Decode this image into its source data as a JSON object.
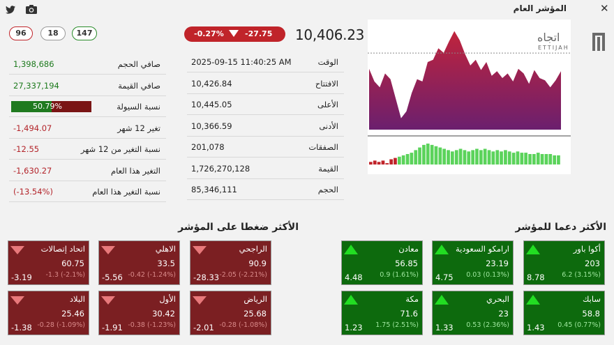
{
  "header": {
    "title": "المؤشر العام",
    "close_icon": "close-icon",
    "twitter_icon": "twitter-icon",
    "camera_icon": "camera-icon"
  },
  "breadth": {
    "down": "96",
    "unchanged": "18",
    "up": "147"
  },
  "index": {
    "value": "10,406.23",
    "change": "-27.75",
    "change_pct": "-0.27%",
    "direction": "down"
  },
  "left_stats": [
    {
      "label": "صافي الحجم",
      "value": "1,398,686",
      "color": "g"
    },
    {
      "label": "صافي القيمة",
      "value": "27,337,194",
      "color": "g"
    },
    {
      "label": "نسبة السيولة",
      "value": "50.79%",
      "fill": 0.5079,
      "type": "bar"
    },
    {
      "label": "تغير 12 شهر",
      "value": "-1,494.07",
      "color": "r"
    },
    {
      "label": "نسبة التغير من 12 شهر",
      "value": "-12.55",
      "color": "r"
    },
    {
      "label": "التغير هذا العام",
      "value": "-1,630.27",
      "color": "r"
    },
    {
      "label": "نسبة التغير هذا العام",
      "value": "(-13.54%)",
      "color": "r"
    }
  ],
  "mid_stats": [
    {
      "label": "الوقت",
      "value": "2025-09-15 11:40:25 AM"
    },
    {
      "label": "الافتتاح",
      "value": "10,426.84"
    },
    {
      "label": "الأعلى",
      "value": "10,445.05"
    },
    {
      "label": "الأدنى",
      "value": "10,366.59"
    },
    {
      "label": "الصفقات",
      "value": "201,078"
    },
    {
      "label": "القيمة",
      "value": "1,726,270,128"
    },
    {
      "label": "الحجم",
      "value": "85,346,111"
    }
  ],
  "logo": {
    "text_ar": "اتجاه",
    "text_en": "ETTIJAH"
  },
  "chart_data": {
    "type": "area",
    "series": [
      {
        "values": [
          10413,
          10402,
          10397,
          10409,
          10404,
          10387,
          10370,
          10376,
          10392,
          10404,
          10402,
          10419,
          10421,
          10431,
          10427,
          10437,
          10446,
          10438,
          10426,
          10416,
          10421,
          10412,
          10419,
          10407,
          10411,
          10405,
          10409,
          10402,
          10413,
          10409,
          10400,
          10412,
          10405,
          10403,
          10397,
          10403,
          10411
        ]
      }
    ],
    "reference_value": 10426.84,
    "volume": [
      2,
      3,
      2,
      3,
      1,
      4,
      5,
      6,
      7,
      8,
      9,
      11,
      13,
      15,
      16,
      15,
      14,
      13,
      12,
      11,
      10,
      11,
      12,
      11,
      10,
      11,
      12,
      11,
      12,
      11,
      10,
      11,
      10,
      11,
      10,
      9,
      10,
      9,
      9,
      8,
      8,
      9,
      8,
      8,
      8,
      7,
      7
    ],
    "volume_down_count": 7,
    "colors": {
      "top": "#b5203a",
      "bottom": "#6e1f70",
      "up_volume": "#5bd35b",
      "down_volume": "#c0242a"
    }
  },
  "sections": {
    "pressure_title": "الأكثر ضغطا على المؤشر",
    "support_title": "الأكثر دعما للمؤشر"
  },
  "pressure_tiles": [
    {
      "name": "الراجحي",
      "price": "90.9",
      "detail": "-2.05 (-2.21%)",
      "impact": "-28.33"
    },
    {
      "name": "الاهلي",
      "price": "33.5",
      "detail": "-0.42 (-1.24%)",
      "impact": "-5.56"
    },
    {
      "name": "اتحاد إتصالات",
      "price": "60.75",
      "detail": "-1.3 (-2.1%)",
      "impact": "-3.19"
    },
    {
      "name": "الرياض",
      "price": "25.68",
      "detail": "-0.28 (-1.08%)",
      "impact": "-2.01"
    },
    {
      "name": "الأول",
      "price": "30.42",
      "detail": "-0.38 (-1.23%)",
      "impact": "-1.91"
    },
    {
      "name": "البلاد",
      "price": "25.46",
      "detail": "-0.28 (-1.09%)",
      "impact": "-1.38"
    }
  ],
  "support_tiles": [
    {
      "name": "أكوا باور",
      "price": "203",
      "detail": "6.2 (3.15%)",
      "impact": "8.78"
    },
    {
      "name": "ارامكو السعودية",
      "price": "23.19",
      "detail": "0.03 (0.13%)",
      "impact": "4.75"
    },
    {
      "name": "معادن",
      "price": "56.85",
      "detail": "0.9 (1.61%)",
      "impact": "4.48"
    },
    {
      "name": "سابك",
      "price": "58.8",
      "detail": "0.45 (0.77%)",
      "impact": "1.43"
    },
    {
      "name": "البحري",
      "price": "23",
      "detail": "0.53 (2.36%)",
      "impact": "1.33"
    },
    {
      "name": "مكة",
      "price": "71.6",
      "detail": "1.75 (2.51%)",
      "impact": "1.23"
    }
  ]
}
